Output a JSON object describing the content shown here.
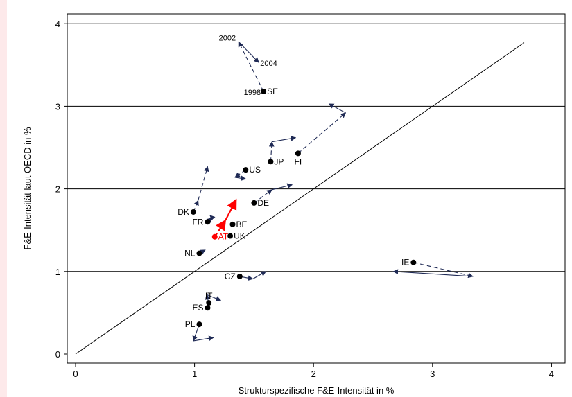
{
  "chart_data": {
    "type": "scatter",
    "title": "",
    "xlabel": "Strukturspezifische F&E-Intensität in %",
    "ylabel": "F&E-Intensität laut OECD in %",
    "xlim": [
      -0.1,
      4.1
    ],
    "ylim": [
      -0.1,
      4.1
    ],
    "xticks": [
      "0",
      "1",
      "2",
      "3",
      "4"
    ],
    "yticks": [
      "0",
      "1",
      "2",
      "3",
      "4"
    ],
    "grid": "horizontal",
    "diagonal": {
      "from": [
        0,
        0
      ],
      "to": [
        3.77,
        3.77
      ]
    },
    "points": [
      {
        "label": "SE",
        "x": 1.58,
        "y": 3.18,
        "color": "#000000",
        "label_side": "right",
        "path": [
          [
            1.58,
            3.18
          ],
          [
            1.37,
            3.78
          ],
          [
            1.54,
            3.53
          ]
        ],
        "arrow_dashed": [
          true,
          false
        ],
        "path_labels": [
          {
            "text": "1998",
            "at": 0,
            "side": "left"
          },
          {
            "text": "2002",
            "at": 1,
            "side": "left"
          },
          {
            "text": "2004",
            "at": 2,
            "side": "right"
          }
        ]
      },
      {
        "label": "FI",
        "x": 1.87,
        "y": 2.43,
        "color": "#000000",
        "label_side": "below",
        "path": [
          [
            1.87,
            2.43
          ],
          [
            2.27,
            2.92
          ],
          [
            2.13,
            3.03
          ]
        ],
        "arrow_dashed": [
          true,
          false
        ]
      },
      {
        "label": "JP",
        "x": 1.64,
        "y": 2.33,
        "color": "#000000",
        "label_side": "right",
        "path": [
          [
            1.64,
            2.33
          ],
          [
            1.65,
            2.57
          ],
          [
            1.85,
            2.62
          ]
        ],
        "arrow_dashed": [
          true,
          false
        ]
      },
      {
        "label": "US",
        "x": 1.43,
        "y": 2.23,
        "color": "#000000",
        "label_side": "right",
        "path": [
          [
            1.43,
            2.23
          ],
          [
            1.34,
            2.14
          ],
          [
            1.43,
            2.12
          ]
        ],
        "arrow_dashed": [
          true,
          false
        ]
      },
      {
        "label": "DE",
        "x": 1.5,
        "y": 1.83,
        "color": "#000000",
        "label_side": "right",
        "path": [
          [
            1.5,
            1.83
          ],
          [
            1.65,
            1.99
          ],
          [
            1.82,
            2.05
          ]
        ],
        "arrow_dashed": [
          true,
          false
        ]
      },
      {
        "label": "DK",
        "x": 0.99,
        "y": 1.72,
        "color": "#000000",
        "label_side": "left",
        "path": [
          [
            0.99,
            1.72
          ],
          [
            1.03,
            1.86
          ],
          [
            1.11,
            2.27
          ]
        ],
        "arrow_dashed": [
          true,
          true
        ]
      },
      {
        "label": "FR",
        "x": 1.11,
        "y": 1.6,
        "color": "#000000",
        "label_side": "left",
        "path": [
          [
            1.11,
            1.6
          ],
          [
            1.15,
            1.65
          ],
          [
            1.13,
            1.68
          ]
        ],
        "arrow_dashed": [
          false,
          false
        ]
      },
      {
        "label": "BE",
        "x": 1.32,
        "y": 1.57,
        "color": "#000000",
        "label_side": "right",
        "path": []
      },
      {
        "label": "AT",
        "x": 1.17,
        "y": 1.42,
        "color": "#ff0000",
        "label_side": "right",
        "path": [
          [
            1.17,
            1.42
          ],
          [
            1.26,
            1.62
          ],
          [
            1.35,
            1.87
          ]
        ],
        "arrow_dashed": [
          true,
          false
        ]
      },
      {
        "label": "UK",
        "x": 1.3,
        "y": 1.43,
        "color": "#000000",
        "label_side": "right",
        "path": []
      },
      {
        "label": "NL",
        "x": 1.04,
        "y": 1.22,
        "color": "#000000",
        "label_side": "left",
        "path": [
          [
            1.04,
            1.22
          ],
          [
            1.09,
            1.26
          ]
        ],
        "arrow_dashed": [
          false
        ]
      },
      {
        "label": "IE",
        "x": 2.84,
        "y": 1.11,
        "color": "#000000",
        "label_side": "left",
        "path": [
          [
            2.84,
            1.11
          ],
          [
            3.34,
            0.94
          ],
          [
            2.67,
            1.0
          ]
        ],
        "arrow_dashed": [
          true,
          false
        ]
      },
      {
        "label": "CZ",
        "x": 1.38,
        "y": 0.94,
        "color": "#000000",
        "label_side": "left",
        "path": [
          [
            1.38,
            0.94
          ],
          [
            1.49,
            0.91
          ],
          [
            1.6,
            1.0
          ]
        ],
        "arrow_dashed": [
          false,
          false
        ]
      },
      {
        "label": "IT",
        "x": 1.12,
        "y": 0.62,
        "color": "#000000",
        "label_side": "above",
        "path": [
          [
            1.12,
            0.62
          ],
          [
            1.1,
            0.72
          ],
          [
            1.22,
            0.65
          ]
        ],
        "arrow_dashed": [
          false,
          false
        ]
      },
      {
        "label": "ES",
        "x": 1.11,
        "y": 0.56,
        "color": "#000000",
        "label_side": "left",
        "path": []
      },
      {
        "label": "PL",
        "x": 1.04,
        "y": 0.36,
        "color": "#000000",
        "label_side": "left",
        "path": [
          [
            1.04,
            0.36
          ],
          [
            0.99,
            0.16
          ],
          [
            1.16,
            0.2
          ]
        ],
        "arrow_dashed": [
          false,
          false
        ]
      }
    ]
  }
}
